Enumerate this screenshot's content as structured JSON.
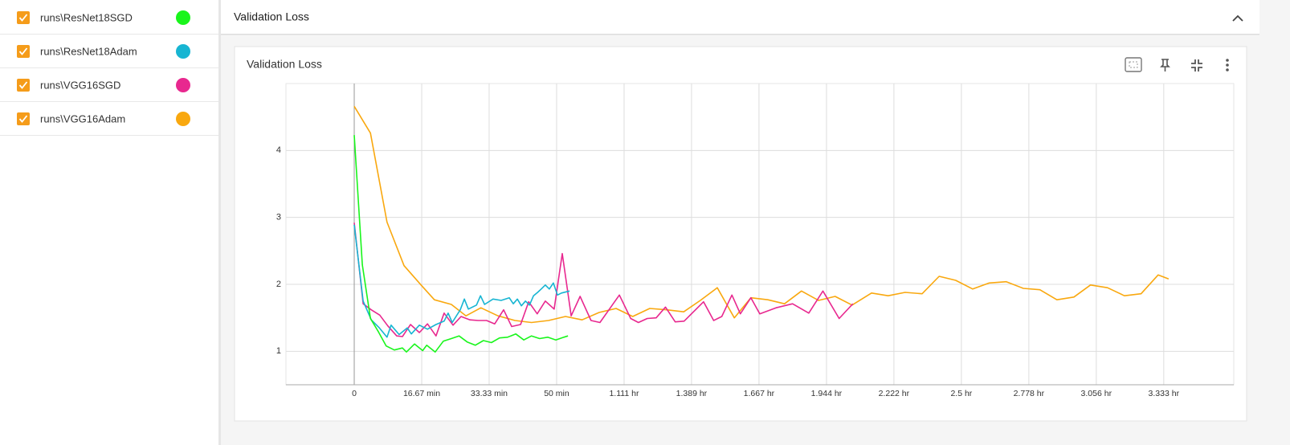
{
  "section_title": "Validation Loss",
  "chart_data": {
    "type": "line",
    "title": "Validation Loss",
    "xlim": [
      -16.87,
      217.3
    ],
    "ylim": [
      0.5,
      5
    ],
    "xticks": [
      0,
      {
        "value": 16.67,
        "label": "16.67 min"
      },
      {
        "value": 33.33,
        "label": "33.33 min"
      },
      {
        "value": 50,
        "label": "50 min"
      },
      {
        "value": 66.67,
        "label": "1.111 hr"
      },
      {
        "value": 83.33,
        "label": "1.389 hr"
      },
      {
        "value": 100,
        "label": "1.667 hr"
      },
      {
        "value": 116.67,
        "label": "1.944 hr"
      },
      {
        "value": 133.33,
        "label": "2.222 hr"
      },
      {
        "value": 150,
        "label": "2.5 hr"
      },
      {
        "value": 166.67,
        "label": "2.778 hr"
      },
      {
        "value": 183.33,
        "label": "3.056 hr"
      },
      {
        "value": 200,
        "label": "3.333 hr"
      }
    ],
    "yticks": [
      1,
      2,
      3,
      4
    ],
    "grid": true,
    "series": [
      {
        "name": "runs\\ResNet18SGD",
        "color": "#19f51c",
        "x": [
          0,
          2.0,
          4.0,
          6.0,
          7.9,
          9.9,
          11.9,
          12.9,
          14.9,
          16.9,
          17.9,
          20.0,
          22.0,
          24.0,
          25.9,
          27.9,
          29.9,
          31.9,
          33.9,
          35.9,
          37.9,
          39.9,
          41.9,
          43.8,
          45.8,
          47.8,
          49.8,
          51.8,
          52.8
        ],
        "values": [
          4.23,
          2.29,
          1.49,
          1.29,
          1.08,
          1.02,
          1.05,
          0.99,
          1.11,
          1.01,
          1.09,
          0.99,
          1.15,
          1.19,
          1.23,
          1.14,
          1.09,
          1.16,
          1.13,
          1.2,
          1.21,
          1.26,
          1.17,
          1.23,
          1.19,
          1.21,
          1.17,
          1.21,
          1.23
        ]
      },
      {
        "name": "runs\\ResNet18Adam",
        "color": "#17b5d2",
        "x": [
          0,
          2.2,
          4.2,
          6.2,
          8.1,
          9.1,
          11.1,
          13.1,
          14.1,
          16.1,
          18.1,
          20.2,
          22.2,
          23.2,
          24.2,
          26.2,
          27.2,
          28.2,
          30.2,
          31.2,
          32.2,
          34.3,
          36.3,
          38.3,
          39.3,
          40.3,
          41.3,
          42.3,
          43.3,
          44.3,
          45.3,
          46.2,
          47.2,
          48.2,
          49.2,
          50.2,
          51.2,
          53.2
        ],
        "values": [
          2.89,
          1.75,
          1.47,
          1.35,
          1.21,
          1.39,
          1.25,
          1.35,
          1.26,
          1.39,
          1.33,
          1.4,
          1.45,
          1.57,
          1.43,
          1.62,
          1.78,
          1.63,
          1.69,
          1.83,
          1.7,
          1.78,
          1.76,
          1.8,
          1.71,
          1.78,
          1.68,
          1.75,
          1.69,
          1.83,
          1.88,
          1.93,
          1.99,
          1.93,
          2.02,
          1.84,
          1.87,
          1.9
        ]
      },
      {
        "name": "runs\\VGG16SGD",
        "color": "#e8288f",
        "x": [
          0,
          2.2,
          4.2,
          6.3,
          8.3,
          10.5,
          11.9,
          13.9,
          16.1,
          18.1,
          20.2,
          22.2,
          24.4,
          26.4,
          28.6,
          30.6,
          32.7,
          34.7,
          36.9,
          38.9,
          41.1,
          43.1,
          45.2,
          47.2,
          49.4,
          51.4,
          53.6,
          55.8,
          58.5,
          60.7,
          65.5,
          68.3,
          70.2,
          72.4,
          74.6,
          76.9,
          79.3,
          81.5,
          86.3,
          88.8,
          90.8,
          93.3,
          95.4,
          98.0,
          100.2,
          104.2,
          108.3,
          112.3,
          115.8,
          119.8,
          123.2
        ],
        "values": [
          2.92,
          1.71,
          1.62,
          1.54,
          1.38,
          1.23,
          1.22,
          1.4,
          1.28,
          1.41,
          1.23,
          1.57,
          1.39,
          1.52,
          1.47,
          1.46,
          1.46,
          1.41,
          1.62,
          1.37,
          1.4,
          1.74,
          1.56,
          1.75,
          1.63,
          2.46,
          1.53,
          1.82,
          1.46,
          1.43,
          1.84,
          1.49,
          1.43,
          1.49,
          1.5,
          1.66,
          1.44,
          1.45,
          1.74,
          1.46,
          1.52,
          1.84,
          1.56,
          1.8,
          1.56,
          1.65,
          1.71,
          1.57,
          1.9,
          1.49,
          1.71
        ]
      },
      {
        "name": "runs\\VGG16Adam",
        "color": "#f9a80f",
        "x": [
          0,
          4.0,
          8.1,
          12.3,
          16.5,
          19.8,
          24.0,
          27.6,
          31.3,
          35.5,
          39.7,
          43.8,
          48.0,
          52.2,
          56.3,
          60.5,
          64.7,
          68.8,
          73.0,
          77.2,
          81.4,
          85.5,
          89.7,
          93.9,
          98.0,
          102.2,
          106.3,
          110.5,
          114.7,
          118.8,
          123.0,
          127.8,
          131.9,
          136.1,
          140.3,
          144.5,
          148.6,
          152.8,
          156.9,
          161.1,
          165.3,
          169.4,
          173.6,
          177.8,
          181.9,
          186.1,
          190.3,
          194.4,
          198.6,
          201.2
        ],
        "values": [
          4.66,
          4.26,
          2.93,
          2.28,
          1.99,
          1.77,
          1.7,
          1.53,
          1.65,
          1.53,
          1.46,
          1.43,
          1.46,
          1.52,
          1.47,
          1.58,
          1.64,
          1.52,
          1.64,
          1.62,
          1.59,
          1.76,
          1.95,
          1.5,
          1.8,
          1.77,
          1.71,
          1.9,
          1.76,
          1.82,
          1.69,
          1.87,
          1.83,
          1.88,
          1.86,
          2.12,
          2.06,
          1.93,
          2.02,
          2.04,
          1.94,
          1.92,
          1.77,
          1.81,
          1.99,
          1.95,
          1.83,
          1.86,
          2.14,
          2.08
        ]
      }
    ]
  }
}
